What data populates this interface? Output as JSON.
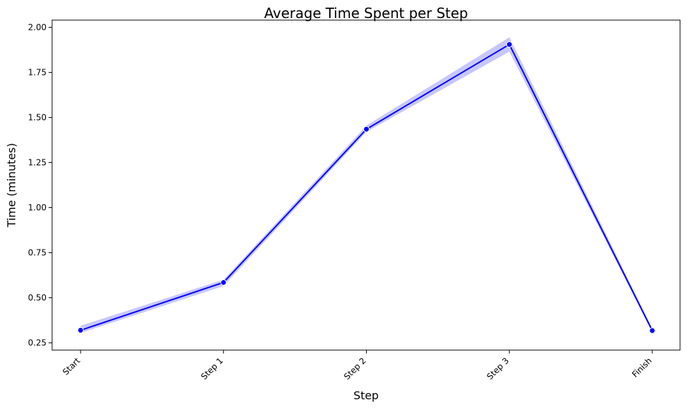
{
  "chart_data": {
    "type": "line",
    "title": "Average Time Spent per Step",
    "xlabel": "Step",
    "ylabel": "Time (minutes)",
    "categories": [
      "Start",
      "Step 1",
      "Step 2",
      "Step 3",
      "Finish"
    ],
    "series": [
      {
        "values": [
          0.32,
          0.585,
          1.435,
          1.905,
          0.318
        ],
        "ci_low": [
          0.305,
          0.565,
          1.42,
          1.865,
          0.31
        ],
        "ci_high": [
          0.345,
          0.6,
          1.455,
          1.945,
          0.33
        ]
      }
    ],
    "ylim": [
      0.21,
      2.04
    ],
    "yticks": [
      0.25,
      0.5,
      0.75,
      1.0,
      1.25,
      1.5,
      1.75,
      2.0
    ],
    "ytick_labels": [
      "0.25",
      "0.50",
      "0.75",
      "1.00",
      "1.25",
      "1.50",
      "1.75",
      "2.00"
    ],
    "grid": false,
    "colors": {
      "line": "#0000ff",
      "band": "#0000ff",
      "marker": "#0000ff"
    },
    "xtick_rotation_deg": 45
  }
}
